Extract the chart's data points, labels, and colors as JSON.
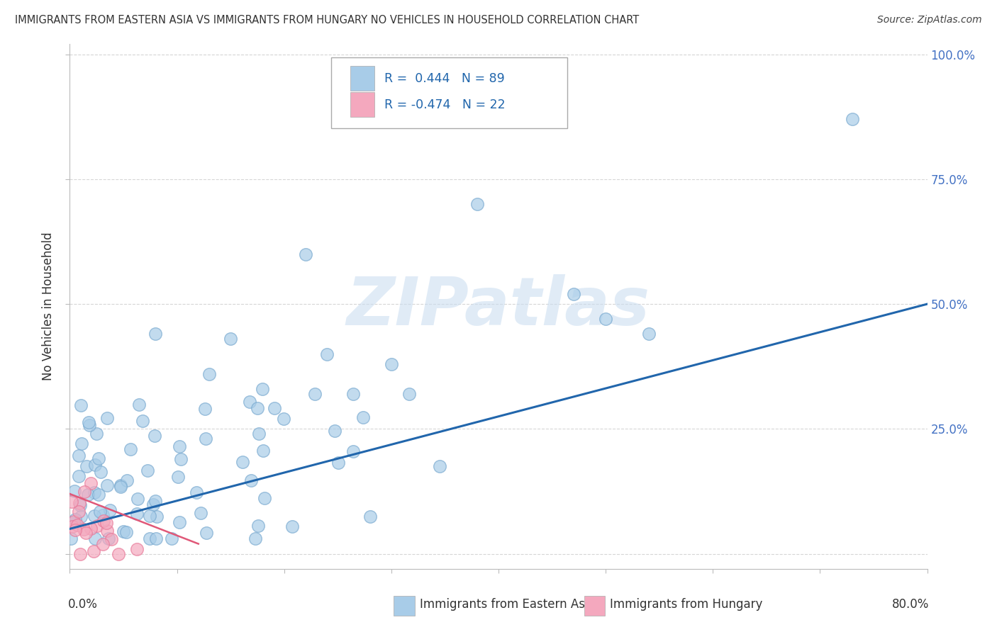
{
  "title": "IMMIGRANTS FROM EASTERN ASIA VS IMMIGRANTS FROM HUNGARY NO VEHICLES IN HOUSEHOLD CORRELATION CHART",
  "source": "Source: ZipAtlas.com",
  "ylabel": "No Vehicles in Household",
  "y_tick_positions": [
    0.0,
    0.25,
    0.5,
    0.75,
    1.0
  ],
  "y_tick_labels": [
    "",
    "25.0%",
    "50.0%",
    "75.0%",
    "100.0%"
  ],
  "x_min": 0.0,
  "x_max": 0.8,
  "y_min": -0.03,
  "y_max": 1.02,
  "legend1_label": "R =  0.444   N = 89",
  "legend2_label": "R = -0.474   N = 22",
  "series1_color": "#A8CCE8",
  "series2_color": "#F4A8BE",
  "series1_edge": "#7AAAD0",
  "series2_edge": "#E87898",
  "line1_color": "#2166AC",
  "line2_color": "#E05878",
  "watermark": "ZIPatlas",
  "background_color": "#FFFFFF",
  "series1_R": 0.444,
  "series1_N": 89,
  "series2_R": -0.474,
  "series2_N": 22
}
